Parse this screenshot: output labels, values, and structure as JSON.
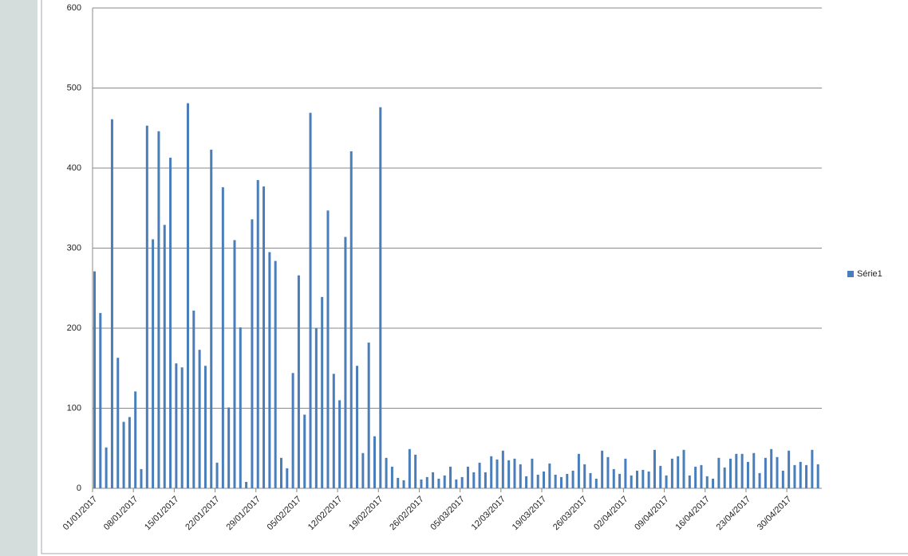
{
  "chart_data": {
    "type": "bar",
    "categories": [
      "01/01/2017",
      null,
      null,
      null,
      null,
      null,
      null,
      "08/01/2017",
      null,
      null,
      null,
      null,
      null,
      null,
      "15/01/2017",
      null,
      null,
      null,
      null,
      null,
      null,
      "22/01/2017",
      null,
      null,
      null,
      null,
      null,
      null,
      "29/01/2017",
      null,
      null,
      null,
      null,
      null,
      null,
      "05/02/2017",
      null,
      null,
      null,
      null,
      null,
      null,
      "12/02/2017",
      null,
      null,
      null,
      null,
      null,
      null,
      "19/02/2017",
      null,
      null,
      null,
      null,
      null,
      null,
      "26/02/2017",
      null,
      null,
      null,
      null,
      null,
      null,
      "05/03/2017",
      null,
      null,
      null,
      null,
      null,
      null,
      "12/03/2017",
      null,
      null,
      null,
      null,
      null,
      null,
      "19/03/2017",
      null,
      null,
      null,
      null,
      null,
      null,
      "26/03/2017",
      null,
      null,
      null,
      null,
      null,
      null,
      "02/04/2017",
      null,
      null,
      null,
      null,
      null,
      null,
      "09/04/2017",
      null,
      null,
      null,
      null,
      null,
      null,
      "16/04/2017",
      null,
      null,
      null,
      null,
      null,
      null,
      "23/04/2017",
      null,
      null,
      null,
      null,
      null,
      null,
      "30/04/2017",
      null,
      null,
      null,
      null,
      null
    ],
    "series": [
      {
        "name": "Série1",
        "color": "#4a7ebb",
        "values": [
          271,
          219,
          51,
          461,
          163,
          83,
          89,
          121,
          24,
          453,
          311,
          446,
          329,
          413,
          156,
          151,
          481,
          222,
          173,
          153,
          423,
          32,
          376,
          101,
          310,
          201,
          8,
          336,
          385,
          377,
          295,
          284,
          38,
          25,
          144,
          266,
          92,
          469,
          200,
          239,
          347,
          143,
          110,
          314,
          421,
          153,
          44,
          182,
          65,
          476,
          38,
          27,
          13,
          10,
          49,
          42,
          11,
          14,
          20,
          12,
          16,
          27,
          11,
          14,
          27,
          20,
          32,
          20,
          40,
          36,
          47,
          35,
          37,
          30,
          15,
          37,
          17,
          21,
          31,
          17,
          14,
          18,
          22,
          43,
          30,
          19,
          12,
          47,
          39,
          24,
          18,
          37,
          16,
          22,
          23,
          21,
          48,
          28,
          16,
          37,
          40,
          48,
          16,
          27,
          29,
          15,
          12,
          38,
          26,
          37,
          43,
          43,
          33,
          44,
          19,
          38,
          49,
          39,
          22,
          47,
          29,
          33,
          29,
          48,
          30
        ]
      }
    ],
    "ylim": [
      0,
      600
    ],
    "yticks": [
      0,
      100,
      200,
      300,
      400,
      500,
      600
    ],
    "grid": true,
    "legend": "right"
  }
}
